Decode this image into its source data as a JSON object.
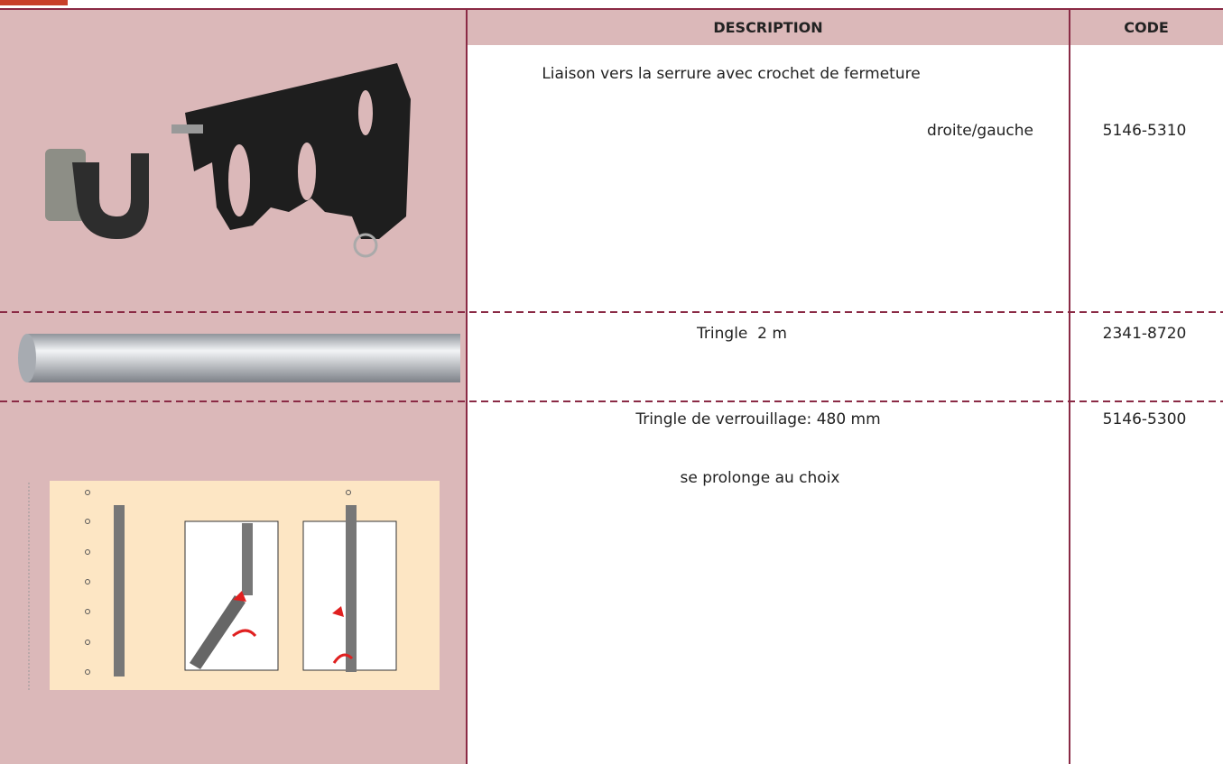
{
  "header": {
    "description": "DESCRIPTION",
    "code": "CODE"
  },
  "rows": [
    {
      "lines": [
        "Liaison vers la serrure avec crochet de fermeture",
        "droite/gauche"
      ],
      "code": "5146-5310"
    },
    {
      "lines": [
        "Tringle  2 m"
      ],
      "code": "2341-8720"
    },
    {
      "lines": [
        "Tringle de verrouillage: 480 mm",
        "se prolonge au choix"
      ],
      "code": "5146-5300"
    }
  ]
}
